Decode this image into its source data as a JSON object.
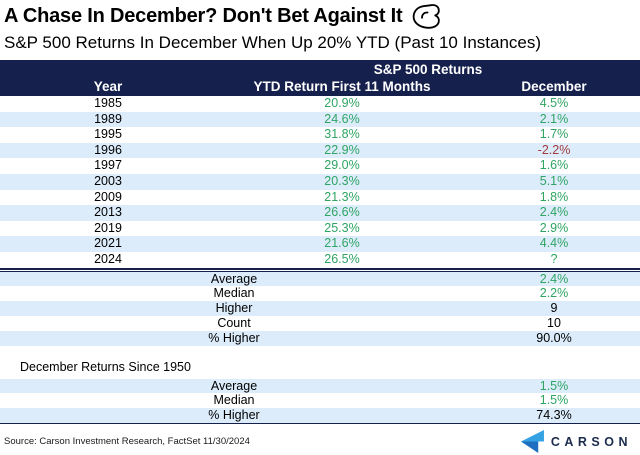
{
  "header": {
    "title": "A Chase In December? Don't Bet Against It",
    "icon": "flexed-bicep-icon",
    "subtitle": "S&P 500 Returns In December When Up 20% YTD (Past 10 Instances)"
  },
  "table": {
    "group_header": "S&P 500 Returns",
    "columns": [
      "Year",
      "YTD Return First 11 Months",
      "December"
    ],
    "rows": [
      {
        "year": "1985",
        "ytd": "20.9%",
        "december": "4.5%"
      },
      {
        "year": "1989",
        "ytd": "24.6%",
        "december": "2.1%"
      },
      {
        "year": "1995",
        "ytd": "31.8%",
        "december": "1.7%"
      },
      {
        "year": "1996",
        "ytd": "22.9%",
        "december": "-2.2%"
      },
      {
        "year": "1997",
        "ytd": "29.0%",
        "december": "1.6%"
      },
      {
        "year": "2003",
        "ytd": "20.3%",
        "december": "5.1%"
      },
      {
        "year": "2009",
        "ytd": "21.3%",
        "december": "1.8%"
      },
      {
        "year": "2013",
        "ytd": "26.6%",
        "december": "2.4%"
      },
      {
        "year": "2019",
        "ytd": "25.3%",
        "december": "2.9%"
      },
      {
        "year": "2021",
        "ytd": "21.6%",
        "december": "4.4%"
      },
      {
        "year": "2024",
        "ytd": "26.5%",
        "december": "?"
      }
    ],
    "summary": [
      {
        "label": "Average",
        "value": "2.4%",
        "value_color": "green"
      },
      {
        "label": "Median",
        "value": "2.2%",
        "value_color": "green"
      },
      {
        "label": "Higher",
        "value": "9",
        "value_color": "black"
      },
      {
        "label": "Count",
        "value": "10",
        "value_color": "black"
      },
      {
        "label": "% Higher",
        "value": "90.0%",
        "value_color": "black"
      }
    ],
    "section2": {
      "label": "December Returns Since 1950",
      "rows": [
        {
          "label": "Average",
          "value": "1.5%",
          "value_color": "green"
        },
        {
          "label": "Median",
          "value": "1.5%",
          "value_color": "green"
        },
        {
          "label": "% Higher",
          "value": "74.3%",
          "value_color": "black"
        }
      ]
    }
  },
  "footer": {
    "source": "Source: Carson Investment Research, FactSet 11/30/2024",
    "logo_text": "CARSON"
  },
  "colors": {
    "header_bg": "#15204d",
    "row_alt": "#dcecfb",
    "positive": "#2fa463",
    "negative": "#a23b3c",
    "logo_light": "#35a3e3",
    "logo_dark": "#1e6fc0",
    "logo_navy": "#1b2b4d"
  },
  "chart_data": {
    "type": "table",
    "title": "A Chase In December? Don't Bet Against It",
    "subtitle": "S&P 500 Returns In December When Up 20% YTD (Past 10 Instances)",
    "group_header": "S&P 500 Returns",
    "columns": [
      "Year",
      "YTD Return First 11 Months",
      "December"
    ],
    "rows": [
      [
        1985,
        20.9,
        4.5
      ],
      [
        1989,
        24.6,
        2.1
      ],
      [
        1995,
        31.8,
        1.7
      ],
      [
        1996,
        22.9,
        -2.2
      ],
      [
        1997,
        29.0,
        1.6
      ],
      [
        2003,
        20.3,
        5.1
      ],
      [
        2009,
        21.3,
        1.8
      ],
      [
        2013,
        26.6,
        2.4
      ],
      [
        2019,
        25.3,
        2.9
      ],
      [
        2021,
        21.6,
        4.4
      ],
      [
        2024,
        26.5,
        null
      ]
    ],
    "summary": {
      "average": 2.4,
      "median": 2.2,
      "higher": 9,
      "count": 10,
      "pct_higher": 90.0
    },
    "december_since_1950": {
      "average": 1.5,
      "median": 1.5,
      "pct_higher": 74.3
    }
  }
}
